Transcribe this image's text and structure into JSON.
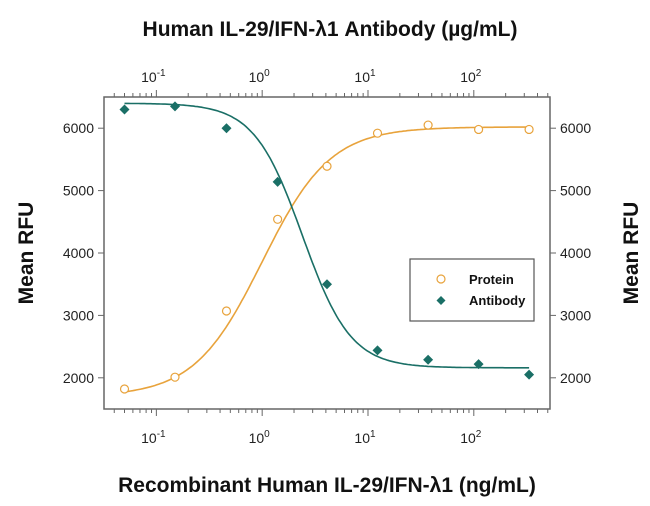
{
  "chart_data": {
    "type": "scatter",
    "title": "Human IL-29/IFN-λ1 Antibody (µg/mL)",
    "xlabel": "Recombinant Human IL-29/IFN-λ1 (ng/mL)",
    "ylabel": "Mean RFU",
    "ylabel_right": "Mean RFU",
    "x_scale": "log",
    "xlim": [
      0.032,
      525
    ],
    "ylim": [
      1500,
      6500
    ],
    "x_ticks": [
      {
        "value": 0.1,
        "label": "10",
        "exp": "-1"
      },
      {
        "value": 1,
        "label": "10",
        "exp": "0"
      },
      {
        "value": 10,
        "label": "10",
        "exp": "1"
      },
      {
        "value": 100,
        "label": "10",
        "exp": "2"
      }
    ],
    "y_ticks": [
      2000,
      3000,
      4000,
      5000,
      6000
    ],
    "grid": false,
    "legend_position": "center-right",
    "series": [
      {
        "name": "Protein",
        "marker": "open-circle",
        "color": "#E8A33C",
        "x": [
          0.05,
          0.15,
          0.46,
          1.4,
          4.1,
          12.3,
          37,
          111,
          333
        ],
        "y": [
          1820,
          2010,
          3070,
          4540,
          5390,
          5920,
          6050,
          5980,
          5980
        ],
        "fit": {
          "bottom": 1700,
          "top": 6020,
          "ec50": 1.0,
          "hill": 1.35
        }
      },
      {
        "name": "Antibody",
        "marker": "filled-diamond",
        "color": "#1A6F66",
        "x": [
          0.05,
          0.15,
          0.46,
          1.4,
          4.1,
          12.3,
          37,
          111,
          333
        ],
        "y": [
          6300,
          6350,
          6000,
          5140,
          3500,
          2440,
          2290,
          2220,
          2050
        ],
        "fit": {
          "bottom": 2160,
          "top": 6400,
          "ec50": 2.4,
          "hill": 1.9
        }
      }
    ]
  }
}
